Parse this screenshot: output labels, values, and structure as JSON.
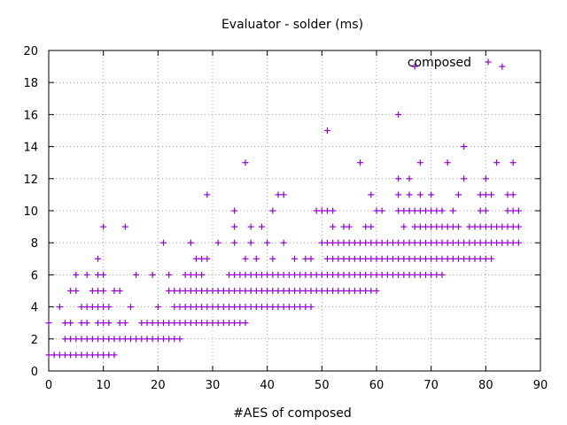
{
  "chart_data": {
    "type": "scatter",
    "title": "Evaluator - solder (ms)",
    "xlabel": "#AES of composed",
    "ylabel": "",
    "xlim": [
      0,
      90
    ],
    "ylim": [
      0,
      20
    ],
    "xticks": [
      0,
      10,
      20,
      30,
      40,
      50,
      60,
      70,
      80,
      90
    ],
    "yticks": [
      0,
      2,
      4,
      6,
      8,
      10,
      12,
      14,
      16,
      18,
      20
    ],
    "grid": true,
    "legend_position": "top-right",
    "marker": "plus",
    "series": [
      {
        "name": "composed",
        "color": "#9400d3",
        "rows": [
          {
            "y": 1,
            "x_ranges": [
              [
                0,
                12
              ]
            ]
          },
          {
            "y": 2,
            "x_ranges": [
              [
                3,
                24
              ]
            ]
          },
          {
            "y": 3,
            "x_ranges": [
              [
                0,
                0
              ],
              [
                3,
                4
              ],
              [
                6,
                7
              ],
              [
                9,
                11
              ],
              [
                13,
                14
              ],
              [
                17,
                36
              ]
            ]
          },
          {
            "y": 4,
            "x_ranges": [
              [
                2,
                2
              ],
              [
                6,
                11
              ],
              [
                15,
                15
              ],
              [
                20,
                20
              ],
              [
                23,
                48
              ]
            ]
          },
          {
            "y": 5,
            "x_ranges": [
              [
                4,
                5
              ],
              [
                8,
                10
              ],
              [
                12,
                13
              ],
              [
                22,
                60
              ]
            ]
          },
          {
            "y": 6,
            "x_ranges": [
              [
                5,
                5
              ],
              [
                7,
                7
              ],
              [
                9,
                10
              ],
              [
                16,
                16
              ],
              [
                19,
                19
              ],
              [
                22,
                22
              ],
              [
                25,
                28
              ],
              [
                33,
                72
              ]
            ]
          },
          {
            "y": 7,
            "x_ranges": [
              [
                9,
                9
              ],
              [
                27,
                29
              ],
              [
                36,
                36
              ],
              [
                38,
                38
              ],
              [
                41,
                41
              ],
              [
                45,
                45
              ],
              [
                47,
                48
              ],
              [
                51,
                81
              ]
            ]
          },
          {
            "y": 8,
            "x_ranges": [
              [
                21,
                21
              ],
              [
                26,
                26
              ],
              [
                31,
                31
              ],
              [
                34,
                34
              ],
              [
                37,
                37
              ],
              [
                40,
                40
              ],
              [
                43,
                43
              ],
              [
                50,
                50
              ],
              [
                51,
                86
              ]
            ]
          },
          {
            "y": 9,
            "x_ranges": [
              [
                10,
                10
              ],
              [
                14,
                14
              ],
              [
                34,
                34
              ],
              [
                37,
                37
              ],
              [
                39,
                39
              ],
              [
                52,
                52
              ],
              [
                54,
                55
              ],
              [
                58,
                59
              ],
              [
                65,
                65
              ],
              [
                67,
                75
              ],
              [
                77,
                86
              ]
            ]
          },
          {
            "y": 10,
            "x_ranges": [
              [
                34,
                34
              ],
              [
                41,
                41
              ],
              [
                49,
                52
              ],
              [
                60,
                61
              ],
              [
                64,
                72
              ],
              [
                74,
                74
              ],
              [
                79,
                80
              ],
              [
                84,
                86
              ]
            ]
          },
          {
            "y": 11,
            "x_ranges": [
              [
                29,
                29
              ],
              [
                42,
                43
              ],
              [
                59,
                59
              ],
              [
                64,
                64
              ],
              [
                66,
                66
              ],
              [
                68,
                68
              ],
              [
                70,
                70
              ],
              [
                75,
                75
              ],
              [
                79,
                81
              ],
              [
                84,
                85
              ]
            ]
          },
          {
            "y": 12,
            "x_ranges": [
              [
                64,
                64
              ],
              [
                66,
                66
              ],
              [
                76,
                76
              ],
              [
                80,
                80
              ]
            ]
          },
          {
            "y": 13,
            "x_ranges": [
              [
                36,
                36
              ],
              [
                57,
                57
              ],
              [
                68,
                68
              ],
              [
                73,
                73
              ],
              [
                82,
                82
              ],
              [
                85,
                85
              ]
            ]
          },
          {
            "y": 14,
            "x_ranges": [
              [
                76,
                76
              ]
            ]
          },
          {
            "y": 15,
            "x_ranges": [
              [
                51,
                51
              ]
            ]
          },
          {
            "y": 16,
            "x_ranges": [
              [
                64,
                64
              ]
            ]
          },
          {
            "y": 19,
            "x_ranges": [
              [
                67,
                67
              ],
              [
                83,
                83
              ]
            ]
          }
        ]
      }
    ]
  }
}
